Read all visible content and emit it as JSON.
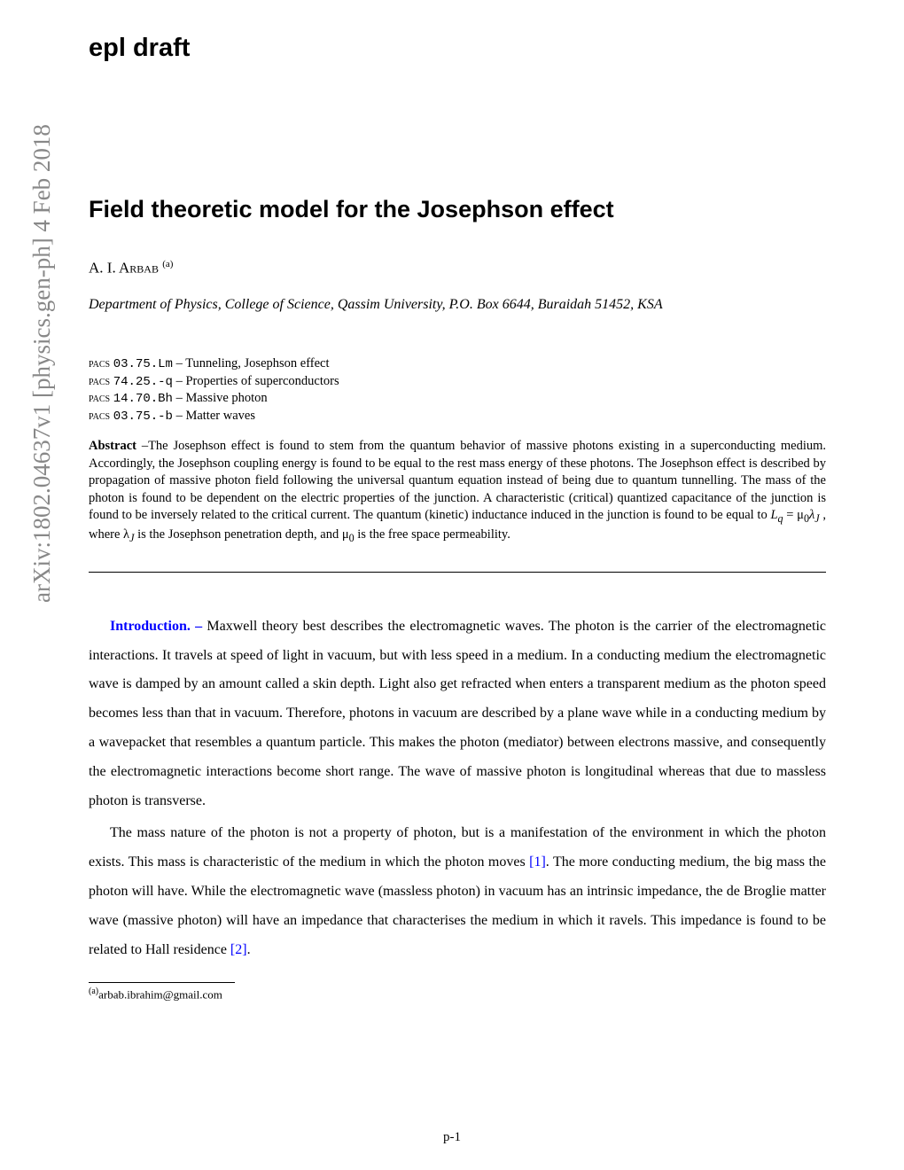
{
  "arxiv_stamp": "arXiv:1802.04637v1  [physics.gen-ph]  4 Feb 2018",
  "draft_header": "epl draft",
  "title": "Field theoretic model for the Josephson effect",
  "author_name": "A. I. Arbab",
  "author_sup": "(a)",
  "affiliation": "Department of Physics, College of Science, Qassim University, P.O. Box 6644, Buraidah 51452, KSA",
  "pacs": [
    {
      "code": "03.75.Lm",
      "desc": "Tunneling, Josephson effect"
    },
    {
      "code": "74.25.-q",
      "desc": "Properties of superconductors"
    },
    {
      "code": "14.70.Bh",
      "desc": "Massive photon"
    },
    {
      "code": "03.75.-b",
      "desc": "Matter waves"
    }
  ],
  "pacs_label": "pacs",
  "abstract_label": "Abstract",
  "abstract_text": " –The Josephson effect is found to stem from the quantum behavior of massive photons existing in a superconducting medium. Accordingly, the Josephson coupling energy is found to be equal to the rest mass energy of these photons. The Josephson effect is described by propagation of massive photon field following the universal quantum equation instead of being due to quantum tunnelling. The mass of the photon is found to be dependent on the electric properties of the junction. A characteristic (critical) quantized capacitance of the junction is found to be inversely related to the critical current. The quantum (kinetic) inductance induced in the junction is found to be equal to ",
  "abstract_formula_1": "L",
  "abstract_formula_sub1": "q",
  "abstract_formula_2": " = μ",
  "abstract_formula_sub2": "0",
  "abstract_formula_3": "λ",
  "abstract_formula_sub3": "J",
  "abstract_text2": " , where λ",
  "abstract_formula_sub4": "J",
  "abstract_text3": " is the Josephson penetration depth, and μ",
  "abstract_formula_sub5": "0",
  "abstract_text4": " is the free space permeability.",
  "section_intro": "Introduction. –",
  "paragraph1": "   Maxwell theory best describes the electromagnetic waves. The photon is the carrier of the electromagnetic interactions. It travels at speed of light in vacuum, but with less speed in a medium. In a conducting medium the electromagnetic wave is damped by an amount called a skin depth. Light also get refracted when enters a transparent medium as the photon speed becomes less than that in vacuum. Therefore, photons in vacuum are described by a plane wave while in a conducting medium by a wavepacket that resembles a quantum particle. This makes the photon (mediator) between electrons massive, and consequently the electromagnetic interactions become short range. The wave of massive photon is longitudinal whereas that due to massless photon is transverse.",
  "paragraph2a": "The mass nature of the photon is not a property of photon, but is a manifestation of the environment in which the photon exists. This mass is characteristic of the medium in which the photon moves  ",
  "cite1": "[1]",
  "paragraph2b": ". The more conducting medium, the big mass the photon will have. While the electromagnetic wave (massless photon) in vacuum has an intrinsic impedance, the de Broglie matter wave (massive photon) will have an impedance that characterises the medium in which it ravels. This impedance is found to be related to Hall residence  ",
  "cite2": "[2]",
  "paragraph2c": ".",
  "footnote_sup": "(a)",
  "footnote_text": "arbab.ibrahim@gmail.com",
  "page_number": "p-1"
}
